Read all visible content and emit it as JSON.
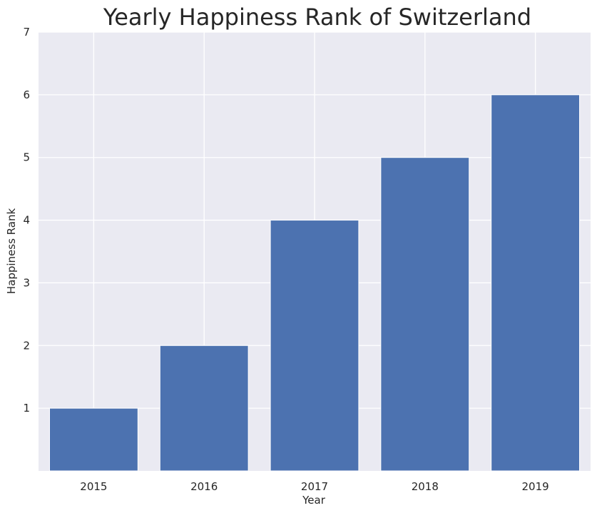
{
  "chart_data": {
    "type": "bar",
    "title": "Yearly Happiness Rank of Switzerland",
    "xlabel": "Year",
    "ylabel": "Happiness Rank",
    "categories": [
      "2015",
      "2016",
      "2017",
      "2018",
      "2019"
    ],
    "values": [
      1,
      2,
      4,
      5,
      6
    ],
    "ylim": [
      0,
      7
    ],
    "yticks": [
      1,
      2,
      3,
      4,
      5,
      6,
      7
    ],
    "grid": true,
    "colors": {
      "bar": "#4c72b0",
      "plot_background": "#eaeaf2",
      "grid": "#ffffff"
    }
  }
}
